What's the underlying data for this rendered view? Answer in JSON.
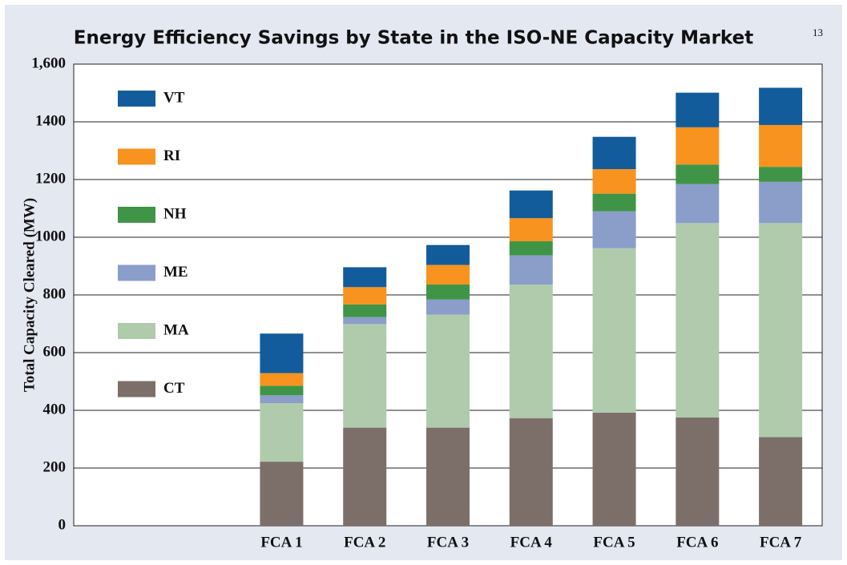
{
  "chart_data": {
    "type": "stacked_bar",
    "title": "Energy Efficiency Savings by State in the ISO-NE Capacity Market",
    "title_note": "13",
    "y_label": "Total Capacity Cleared (MW)",
    "categories": [
      "FCA 1",
      "FCA 2",
      "FCA 3",
      "FCA 4",
      "FCA 5",
      "FCA 6",
      "FCA 7"
    ],
    "series": [
      {
        "name": "CT",
        "color": "#7c6f6a",
        "values": [
          222,
          340,
          340,
          373,
          392,
          375,
          307
        ]
      },
      {
        "name": "MA",
        "color": "#afcbac",
        "values": [
          203,
          359,
          392,
          463,
          570,
          674,
          742
        ]
      },
      {
        "name": "ME",
        "color": "#8b9dc9",
        "values": [
          27,
          24,
          52,
          101,
          128,
          135,
          143
        ]
      },
      {
        "name": "NH",
        "color": "#3f9447",
        "values": [
          33,
          44,
          52,
          49,
          61,
          68,
          52
        ]
      },
      {
        "name": "RI",
        "color": "#f7931e",
        "values": [
          44,
          60,
          68,
          80,
          85,
          129,
          145
        ]
      },
      {
        "name": "VT",
        "color": "#135c9b",
        "values": [
          137,
          69,
          69,
          96,
          112,
          120,
          129
        ]
      }
    ],
    "ylim": [
      0,
      1600
    ],
    "yticks": [
      0,
      200,
      400,
      600,
      800,
      1000,
      1200,
      1400,
      {
        "value": 1600,
        "label": "1,600"
      }
    ],
    "grid": true
  }
}
